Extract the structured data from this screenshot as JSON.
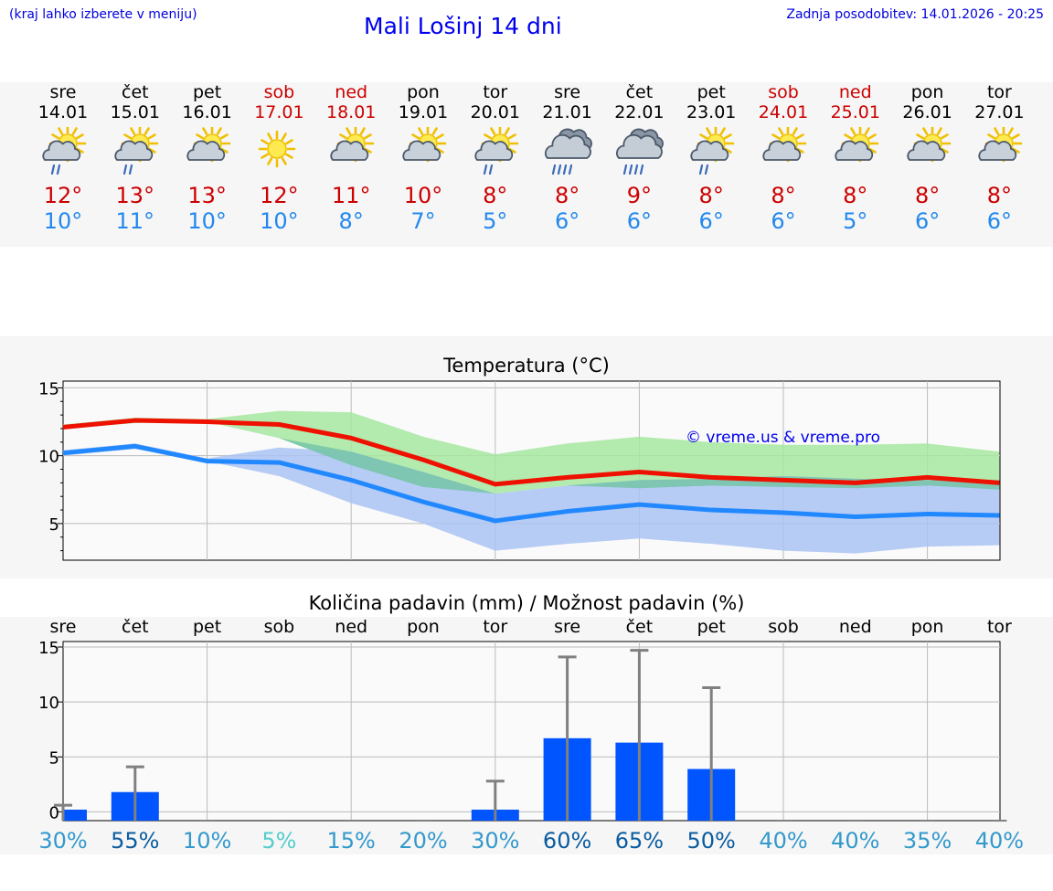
{
  "header": {
    "city_hint": "(kraj lahko izberete v meniju)",
    "title": "Mali Lošinj 14 dni",
    "updated": "Zadnja posodobitev: 14.01.2026 - 20:25"
  },
  "colors": {
    "max_line": "#ee1100",
    "min_line": "#2288ff",
    "max_band": "#a6e6a0",
    "min_band": "#a9c3f3",
    "bar": "#0055ff",
    "whisker": "#808080"
  },
  "days": [
    {
      "name": "sre",
      "date": "14.01",
      "icon": "sun-cloud-rain-icon",
      "tmax": "12°",
      "tmin": "10°",
      "weekend": false
    },
    {
      "name": "čet",
      "date": "15.01",
      "icon": "sun-cloud-rain-icon",
      "tmax": "13°",
      "tmin": "11°",
      "weekend": false
    },
    {
      "name": "pet",
      "date": "16.01",
      "icon": "sun-cloud-icon",
      "tmax": "13°",
      "tmin": "10°",
      "weekend": false
    },
    {
      "name": "sob",
      "date": "17.01",
      "icon": "sun-icon",
      "tmax": "12°",
      "tmin": "10°",
      "weekend": true
    },
    {
      "name": "ned",
      "date": "18.01",
      "icon": "sun-cloud-icon",
      "tmax": "11°",
      "tmin": "8°",
      "weekend": true
    },
    {
      "name": "pon",
      "date": "19.01",
      "icon": "sun-cloud-icon",
      "tmax": "10°",
      "tmin": "7°",
      "weekend": false
    },
    {
      "name": "tor",
      "date": "20.01",
      "icon": "sun-cloud-rain-icon",
      "tmax": "8°",
      "tmin": "5°",
      "weekend": false
    },
    {
      "name": "sre",
      "date": "21.01",
      "icon": "cloud-rain-icon",
      "tmax": "8°",
      "tmin": "6°",
      "weekend": false
    },
    {
      "name": "čet",
      "date": "22.01",
      "icon": "cloud-rain-icon",
      "tmax": "9°",
      "tmin": "6°",
      "weekend": false
    },
    {
      "name": "pet",
      "date": "23.01",
      "icon": "sun-cloud-rain-icon",
      "tmax": "8°",
      "tmin": "6°",
      "weekend": false
    },
    {
      "name": "sob",
      "date": "24.01",
      "icon": "sun-cloud-icon",
      "tmax": "8°",
      "tmin": "6°",
      "weekend": true
    },
    {
      "name": "ned",
      "date": "25.01",
      "icon": "sun-cloud-icon",
      "tmax": "8°",
      "tmin": "5°",
      "weekend": true
    },
    {
      "name": "pon",
      "date": "26.01",
      "icon": "sun-cloud-icon",
      "tmax": "8°",
      "tmin": "6°",
      "weekend": false
    },
    {
      "name": "tor",
      "date": "27.01",
      "icon": "sun-cloud-icon",
      "tmax": "8°",
      "tmin": "6°",
      "weekend": false
    }
  ],
  "chart_data": [
    {
      "type": "line",
      "title": "Temperatura (°C)",
      "watermark": "© vreme.us & vreme.pro",
      "x": [
        0,
        1,
        2,
        3,
        4,
        5,
        6,
        7,
        8,
        9,
        10,
        11,
        12,
        13
      ],
      "ylim": [
        2.3,
        15.5
      ],
      "yticks": [
        5,
        10,
        15
      ],
      "grid": true,
      "series": [
        {
          "name": "max",
          "values": [
            12.1,
            12.6,
            12.5,
            12.3,
            11.3,
            9.7,
            7.9,
            8.4,
            8.8,
            8.4,
            8.2,
            8.0,
            8.4,
            8.0
          ]
        },
        {
          "name": "max_band_low",
          "values": [
            12.0,
            12.4,
            12.5,
            11.3,
            9.3,
            7.7,
            7.2,
            7.8,
            7.6,
            7.8,
            7.7,
            7.6,
            7.8,
            7.5
          ]
        },
        {
          "name": "max_band_high",
          "values": [
            12.3,
            12.8,
            12.7,
            13.3,
            13.2,
            11.4,
            10.1,
            10.9,
            11.4,
            11.0,
            10.8,
            10.8,
            10.9,
            10.3
          ]
        },
        {
          "name": "min",
          "values": [
            10.2,
            10.7,
            9.6,
            9.5,
            8.2,
            6.6,
            5.2,
            5.9,
            6.4,
            6.0,
            5.8,
            5.5,
            5.7,
            5.6
          ]
        },
        {
          "name": "min_band_low",
          "values": [
            10.0,
            10.5,
            9.6,
            8.5,
            6.5,
            5.0,
            3.0,
            3.5,
            3.9,
            3.5,
            3.0,
            2.8,
            3.3,
            3.4
          ]
        },
        {
          "name": "min_band_high",
          "values": [
            10.4,
            10.9,
            9.8,
            10.6,
            10.3,
            8.8,
            7.2,
            7.8,
            8.2,
            8.3,
            8.5,
            8.3,
            8.2,
            8.2
          ]
        }
      ]
    },
    {
      "type": "bar",
      "title": "Količina padavin (mm) / Možnost padavin (%)",
      "categories": [
        "sre",
        "čet",
        "pet",
        "sob",
        "ned",
        "pon",
        "tor",
        "sre",
        "čet",
        "pet",
        "sob",
        "ned",
        "pon",
        "tor"
      ],
      "values": [
        0.2,
        1.8,
        0,
        0,
        0,
        0,
        0.2,
        6.7,
        6.3,
        3.9,
        0,
        0,
        0,
        0
      ],
      "error_high": [
        0.6,
        4.1,
        0,
        0,
        0,
        0,
        2.8,
        14.1,
        14.7,
        11.3,
        0,
        0,
        0,
        0
      ],
      "ylim": [
        -0.8,
        15.5
      ],
      "yticks": [
        0,
        5,
        10,
        15
      ],
      "probability": [
        "30%",
        "55%",
        "10%",
        "5%",
        "15%",
        "20%",
        "30%",
        "60%",
        "65%",
        "50%",
        "40%",
        "40%",
        "35%",
        "40%"
      ],
      "probability_colors": [
        "#3399cc",
        "#0a5ca0",
        "#3399cc",
        "#55cccc",
        "#3399cc",
        "#3399cc",
        "#3399cc",
        "#0a5ca0",
        "#0a5ca0",
        "#0a5ca0",
        "#3399cc",
        "#3399cc",
        "#3399cc",
        "#3399cc"
      ]
    }
  ]
}
